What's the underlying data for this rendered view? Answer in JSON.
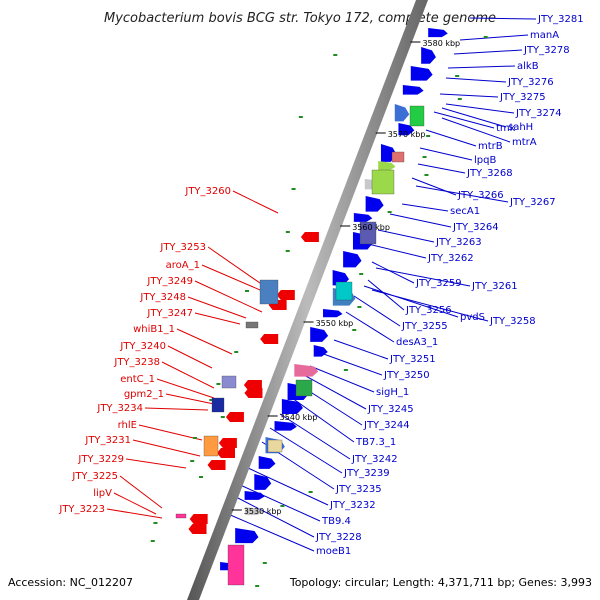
{
  "title": "Mycobacterium bovis BCG str. Tokyo 172, complete genome",
  "footer": {
    "accession": "Accession: NC_012207",
    "topology": "Topology: circular; Length: 4,371,711 bp; Genes: 3,993"
  },
  "colors": {
    "plus_strand": "#0000ee",
    "minus_strand": "#ee0000",
    "left_label": "#e00000",
    "right_label": "#0000cc",
    "backbone": "#888888",
    "rna_dot": "#228b22"
  },
  "kbp_ticks": [
    "3580 kbp",
    "3570 kbp",
    "3560 kbp",
    "3550 kbp",
    "3540 kbp",
    "3530 kbp"
  ],
  "left_labels": [
    "JTY_3260",
    "JTY_3253",
    "aroA_1",
    "JTY_3249",
    "JTY_3248",
    "JTY_3247",
    "whiB1_1",
    "JTY_3240",
    "JTY_3238",
    "entC_1",
    "gpm2_1",
    "JTY_3234",
    "rhlE",
    "JTY_3231",
    "JTY_3229",
    "JTY_3225",
    "lipV",
    "JTY_3223"
  ],
  "right_labels": [
    "JTY_3281",
    "manA",
    "JTY_3278",
    "alkB",
    "JTY_3276",
    "JTY_3275",
    "JTY_3274",
    "sahH",
    "tmk",
    "mtrA",
    "mtrB",
    "lpqB",
    "JTY_3268",
    "JTY_3266",
    "JTY_3267",
    "secA1",
    "JTY_3264",
    "JTY_3263",
    "JTY_3262",
    "JTY_3259",
    "JTY_3261",
    "JTY_3256",
    "pvdS",
    "JTY_3258",
    "JTY_3255",
    "desA3_1",
    "JTY_3251",
    "JTY_3250",
    "sigH_1",
    "JTY_3245",
    "JTY_3244",
    "TB7.3_1",
    "JTY_3242",
    "JTY_3239",
    "JTY_3235",
    "JTY_3232",
    "TB9.4",
    "JTY_3228",
    "moeB1"
  ]
}
